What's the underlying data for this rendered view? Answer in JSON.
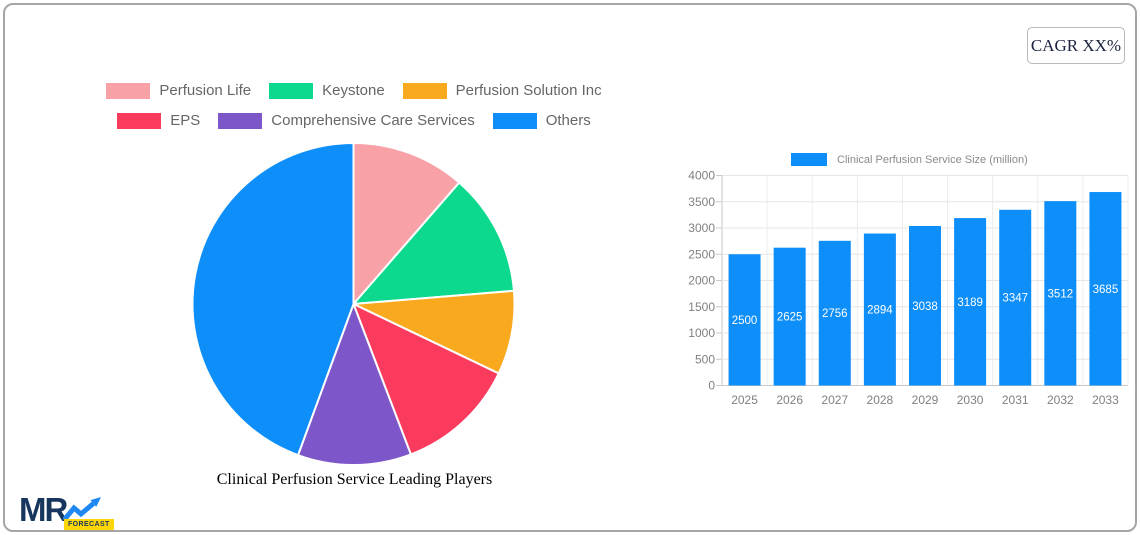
{
  "cagr_badge": {
    "label": "CAGR XX%"
  },
  "logo": {
    "text": "MR",
    "badge": "FORECAST"
  },
  "chart_data": [
    {
      "type": "pie",
      "title": "Clinical Perfusion Service Leading Players",
      "legend_position": "top",
      "legend_rows": [
        [
          0,
          1,
          2
        ],
        [
          3,
          4,
          5
        ]
      ],
      "start_angle_deg": 0,
      "direction": "clockwise",
      "series": [
        {
          "name": "Perfusion Life",
          "value": 11.4,
          "color": "#f8a1a7"
        },
        {
          "name": "Keystone",
          "value": 12.3,
          "color": "#0cd98d"
        },
        {
          "name": "Perfusion Solution Inc",
          "value": 8.4,
          "color": "#f9a91e"
        },
        {
          "name": "EPS",
          "value": 12.1,
          "color": "#fa3b5e"
        },
        {
          "name": "Comprehensive Care Services",
          "value": 11.4,
          "color": "#7d57c9"
        },
        {
          "name": "Others",
          "value": 44.4,
          "color": "#0d8ef9"
        }
      ]
    },
    {
      "type": "bar",
      "legend": "Clinical Perfusion Service Size (million)",
      "categories": [
        "2025",
        "2026",
        "2027",
        "2028",
        "2029",
        "2030",
        "2031",
        "2032",
        "2033"
      ],
      "values": [
        2500,
        2625,
        2756,
        2894,
        3038,
        3189,
        3347,
        3512,
        3685
      ],
      "ylim": [
        0,
        4000
      ],
      "ytick_step": 500,
      "yticks": [
        0,
        500,
        1000,
        1500,
        2000,
        2500,
        3000,
        3500,
        4000
      ],
      "grid": true,
      "bar_color": "#0d8ef9",
      "value_label_color": "#ffffff",
      "axis_label_color": "#808080"
    }
  ]
}
